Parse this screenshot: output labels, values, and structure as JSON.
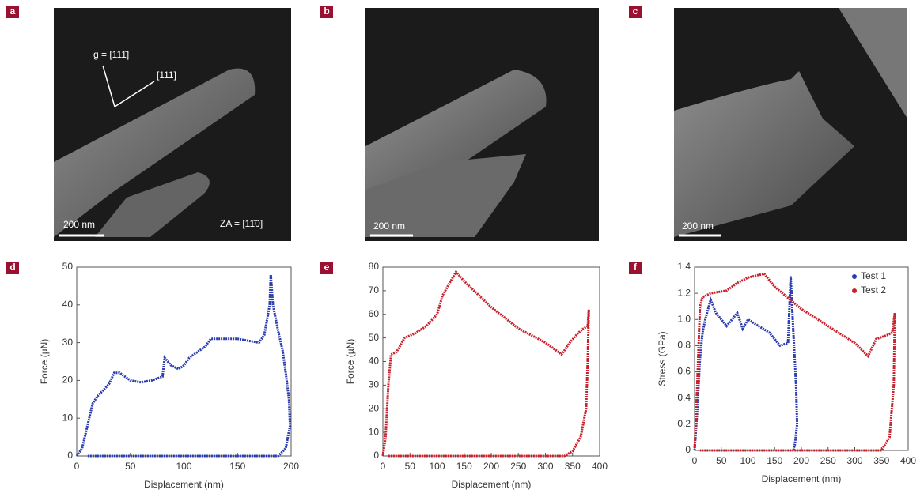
{
  "panels": [
    {
      "label": "a",
      "scale_bar": "200 nm",
      "annotations": [
        "g = [111̄]",
        "[111]",
        "ZA = [11̄0]"
      ]
    },
    {
      "label": "b",
      "scale_bar": "200 nm"
    },
    {
      "label": "c",
      "scale_bar": "200 nm"
    }
  ],
  "chart_data": [
    {
      "type": "line",
      "label": "d",
      "x_label": "Displacement (nm)",
      "y_label": "Force (µN)",
      "xlim": [
        0,
        200
      ],
      "xticks": [
        0,
        50,
        100,
        150,
        200
      ],
      "ylim": [
        0,
        50
      ],
      "yticks": [
        0,
        10,
        20,
        30,
        40,
        50
      ],
      "series": [
        {
          "color": "#2a3cae",
          "x": [
            0,
            5,
            10,
            15,
            20,
            30,
            35,
            40,
            50,
            60,
            70,
            80,
            82,
            88,
            95,
            100,
            105,
            115,
            120,
            125,
            150,
            160,
            170,
            175,
            180,
            181,
            183,
            188,
            192,
            195,
            198,
            199,
            195,
            188,
            180,
            150,
            100,
            50,
            10
          ],
          "values": [
            0,
            2,
            8,
            14,
            16,
            19,
            22,
            22,
            20,
            19.5,
            20,
            21,
            26,
            24,
            23,
            24,
            26,
            28,
            29,
            31,
            31,
            30.5,
            30,
            32,
            40,
            48,
            40,
            33,
            28,
            22,
            15,
            8,
            2,
            0,
            0,
            0,
            0,
            0,
            0
          ]
        }
      ]
    },
    {
      "type": "line",
      "label": "e",
      "x_label": "Displacement (nm)",
      "y_label": "Force (µN)",
      "xlim": [
        0,
        400
      ],
      "xticks": [
        0,
        50,
        100,
        150,
        200,
        250,
        300,
        350,
        400
      ],
      "ylim": [
        0,
        80
      ],
      "yticks": [
        0,
        10,
        20,
        30,
        40,
        50,
        60,
        70,
        80
      ],
      "series": [
        {
          "color": "#c8202a",
          "x": [
            0,
            5,
            10,
            15,
            25,
            30,
            40,
            60,
            80,
            100,
            110,
            125,
            135,
            150,
            200,
            250,
            300,
            330,
            345,
            360,
            370,
            378,
            380,
            378,
            375,
            365,
            350,
            335,
            300,
            200,
            100,
            10
          ],
          "values": [
            0,
            8,
            30,
            43,
            44,
            46,
            50,
            52,
            55,
            60,
            68,
            74,
            78,
            74,
            63,
            54,
            48,
            43,
            48,
            52,
            54,
            55,
            62,
            40,
            20,
            8,
            2,
            0,
            0,
            0,
            0,
            0
          ]
        }
      ]
    },
    {
      "type": "line",
      "label": "f",
      "x_label": "Displacement (nm)",
      "y_label": "Stress (GPa)",
      "xlim": [
        0,
        400
      ],
      "xticks": [
        0,
        50,
        100,
        150,
        200,
        250,
        300,
        350,
        400
      ],
      "ylim": [
        0,
        1.4
      ],
      "yticks": [
        0,
        0.2,
        0.4,
        0.6,
        0.8,
        {
          "value": 1,
          "label": "1.0"
        },
        1.2,
        1.4
      ],
      "legend": "upper right",
      "series": [
        {
          "name": "Test 1",
          "color": "#2a3cae",
          "x": [
            0,
            5,
            10,
            15,
            20,
            30,
            40,
            50,
            60,
            70,
            80,
            90,
            100,
            120,
            140,
            160,
            175,
            180,
            185,
            190,
            192,
            188,
            185
          ],
          "values": [
            0,
            0.3,
            0.7,
            0.9,
            1.0,
            1.15,
            1.05,
            1.0,
            0.95,
            1.0,
            1.05,
            0.93,
            1.0,
            0.95,
            0.9,
            0.8,
            0.82,
            1.33,
            0.9,
            0.5,
            0.2,
            0.05,
            0
          ]
        },
        {
          "name": "Test 2",
          "color": "#c8202a",
          "x": [
            0,
            5,
            10,
            15,
            30,
            60,
            80,
            100,
            130,
            150,
            200,
            250,
            300,
            325,
            340,
            360,
            370,
            375,
            373,
            365,
            350,
            300,
            200,
            100,
            10
          ],
          "values": [
            0,
            0.5,
            1.1,
            1.17,
            1.2,
            1.22,
            1.28,
            1.32,
            1.35,
            1.25,
            1.08,
            0.95,
            0.82,
            0.72,
            0.85,
            0.88,
            0.9,
            1.05,
            0.5,
            0.1,
            0,
            0,
            0,
            0,
            0
          ]
        }
      ]
    }
  ]
}
